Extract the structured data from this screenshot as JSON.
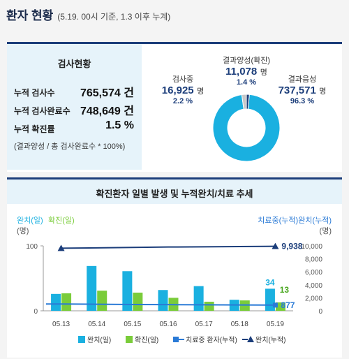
{
  "header": {
    "title": "환자 현황",
    "subtitle": "(5.19. 00시 기준, 1.3 이후 누계)"
  },
  "testing": {
    "title": "검사현황",
    "rows": [
      {
        "label": "누적 검사수",
        "value": "765,574 건"
      },
      {
        "label": "누적 검사완료수",
        "value": "748,649 건"
      },
      {
        "label": "누적 확진률",
        "value": "1.5 %"
      }
    ],
    "note": "(결과양성 / 총 검사완료수 * 100%)"
  },
  "donut": {
    "positive": {
      "name": "결과양성(확진)",
      "value": "11,078",
      "unit": "명",
      "pct": "1.4 %"
    },
    "testing": {
      "name": "검사중",
      "value": "16,925",
      "unit": "명",
      "pct": "2.2 %"
    },
    "negative": {
      "name": "결과음성",
      "value": "737,571",
      "unit": "명",
      "pct": "96.3 %"
    },
    "colors": {
      "negative": "#1ab0e0",
      "testing": "#c8c8c8",
      "positive": "#1b3d7a"
    }
  },
  "chart_title": "확진환자 일별 발생 및 누적완치/치료 추세",
  "chart_data": {
    "type": "bar",
    "left_axis_label": "완치(일)확진(일)",
    "left_axis_label_parts": {
      "recovered": "완치(일)",
      "confirmed": "확진(일)"
    },
    "left_axis_unit": "(명)",
    "right_axis_label": "치료중(누적)완치(누적)",
    "right_axis_unit": "(명)",
    "ylim_left": [
      0,
      100
    ],
    "left_ticks": [
      "0",
      "100"
    ],
    "ylim_right": [
      0,
      10000
    ],
    "right_ticks": [
      "0",
      "2,000",
      "4,000",
      "6,000",
      "8,000",
      "10,000"
    ],
    "categories": [
      "05.13",
      "05.14",
      "05.15",
      "05.16",
      "05.17",
      "05.18",
      "05.19"
    ],
    "series": [
      {
        "name": "완치(일)",
        "kind": "bar",
        "axis": "left",
        "color": "#1ab0e0",
        "values": [
          26,
          69,
          61,
          32,
          38,
          17,
          34
        ]
      },
      {
        "name": "확진(일)",
        "kind": "bar",
        "axis": "left",
        "color": "#7acc3a",
        "values": [
          27,
          31,
          28,
          20,
          14,
          16,
          13
        ]
      },
      {
        "name": "치료중 환자(누적)",
        "kind": "line",
        "axis": "right",
        "color": "#2a7ad6",
        "values": [
          1050,
          1008,
          965,
          950,
          930,
          900,
          877
        ]
      },
      {
        "name": "완치(누적)",
        "kind": "line",
        "axis": "right",
        "color": "#1b3d7a",
        "values": [
          9632,
          9695,
          9762,
          9821,
          9847,
          9888,
          9938
        ]
      }
    ],
    "data_labels": [
      {
        "text": "34",
        "color": "#1ab0e0"
      },
      {
        "text": "13",
        "color": "#4aa820"
      },
      {
        "text": "877",
        "color": "#2a7ad6"
      },
      {
        "text": "9,938",
        "color": "#1b3d7a"
      }
    ],
    "legend": [
      {
        "label": "완치(일)",
        "kind": "bar",
        "color": "#1ab0e0"
      },
      {
        "label": "확진(일)",
        "kind": "bar",
        "color": "#7acc3a"
      },
      {
        "label": "치료중 환자(누적)",
        "kind": "line-square",
        "color": "#2a7ad6"
      },
      {
        "label": "완치(누적)",
        "kind": "line-triangle",
        "color": "#1b3d7a"
      }
    ],
    "legend_placement": "bottom",
    "grid": false
  }
}
